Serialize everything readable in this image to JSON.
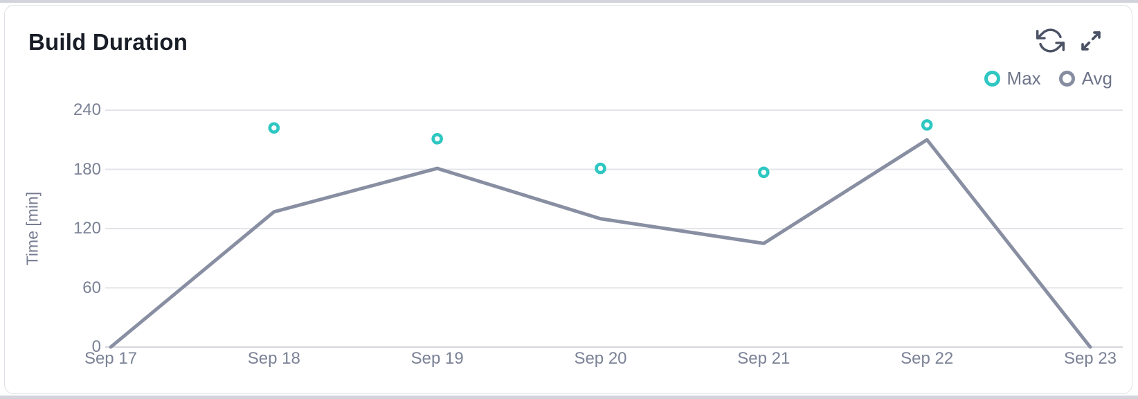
{
  "page": {
    "title": "Build Duration"
  },
  "toolbar": {
    "icons": [
      {
        "name": "refresh-icon"
      },
      {
        "name": "expand-icon"
      }
    ],
    "icon_color": "#4a5264"
  },
  "legend": [
    {
      "label": "Max",
      "color": "#2ec7c2"
    },
    {
      "label": "Avg",
      "color": "#878da0"
    }
  ],
  "chart_data": {
    "type": "line",
    "title": "Build Duration",
    "categories": [
      "Sep 17",
      "Sep 18",
      "Sep 19",
      "Sep 20",
      "Sep 21",
      "Sep 22",
      "Sep 23"
    ],
    "series": [
      {
        "name": "Max",
        "type": "scatter",
        "color": "#2ec7c2",
        "values": [
          null,
          222,
          211,
          181,
          177,
          225,
          null
        ]
      },
      {
        "name": "Avg",
        "type": "line",
        "color": "#898fa2",
        "values": [
          0,
          137,
          181,
          130,
          105,
          210,
          0
        ]
      }
    ],
    "xlabel": "",
    "ylabel": "Time [min]",
    "ylim": [
      0,
      240
    ],
    "yticks": [
      0,
      60,
      120,
      180,
      240
    ],
    "grid": true,
    "grid_color": "#e3e4e9",
    "baseline_color": "#d6d7dd",
    "legend_position": "top-right"
  }
}
